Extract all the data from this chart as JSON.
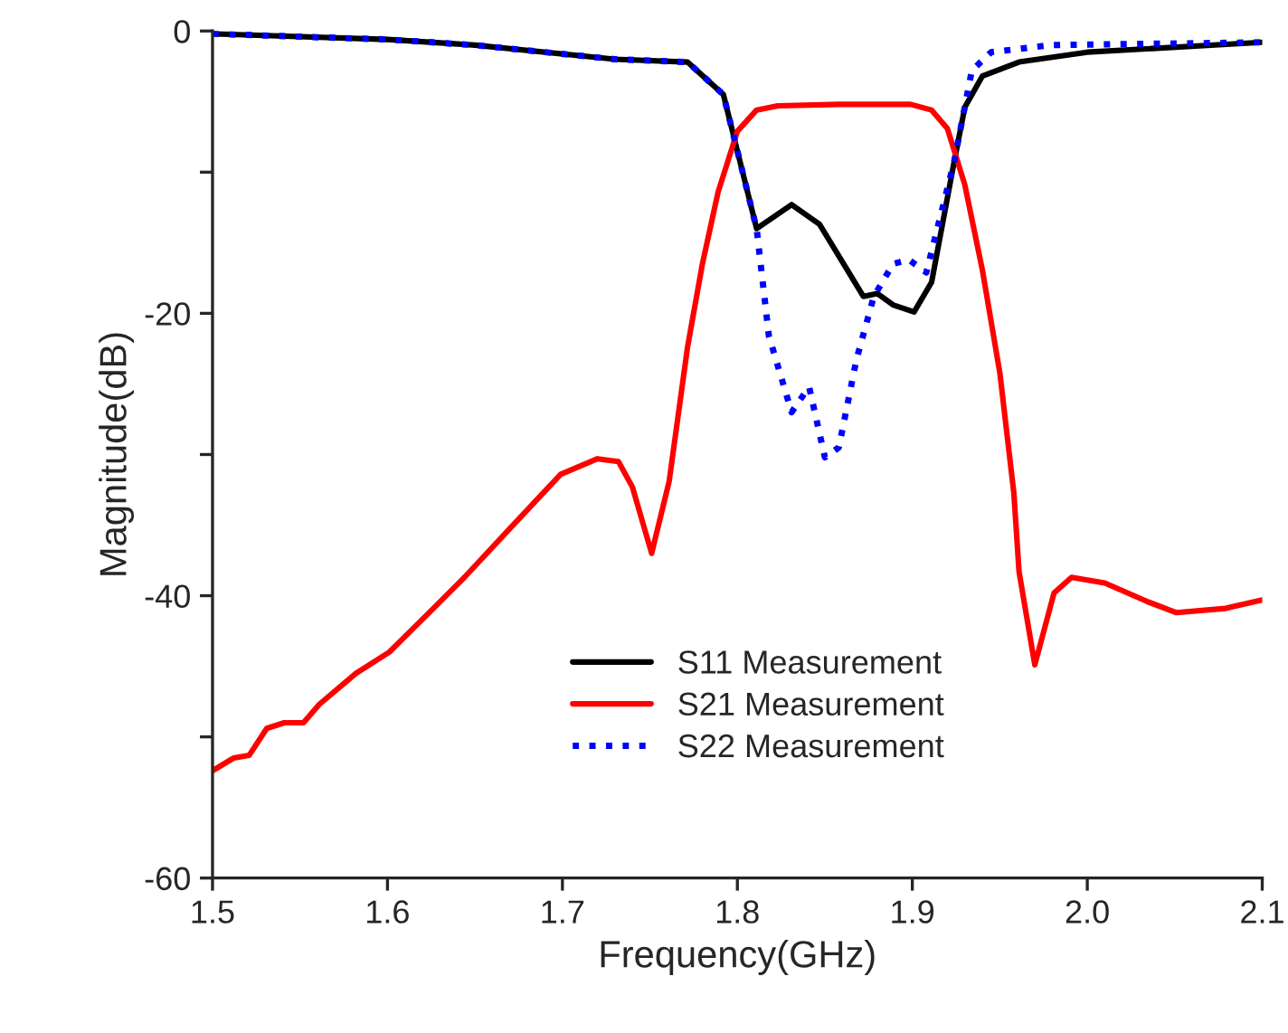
{
  "chart_data": {
    "type": "line",
    "xlabel": "Frequency(GHz)",
    "ylabel": "Magnitude(dB)",
    "xlim": [
      1.5,
      2.1
    ],
    "xticks": [
      1.5,
      1.6,
      1.7,
      1.8,
      1.9,
      {
        "value": 2.0,
        "label": "2.0"
      },
      2.1
    ],
    "ylim": [
      -60,
      0
    ],
    "yticks": [
      -60,
      {
        "value": -50,
        "label": null
      },
      -40,
      {
        "value": -30,
        "label": null
      },
      -20,
      {
        "value": -10,
        "label": null
      },
      0
    ],
    "grid": false,
    "legend": "bottom",
    "marker": "none",
    "series": [
      {
        "name": "S11 Measurement",
        "color": "#000000",
        "line_style": "solid",
        "x": [
          1.5,
          1.6,
          1.65,
          1.73,
          1.7715,
          1.792,
          1.811,
          1.831,
          1.847,
          1.872,
          1.88,
          1.889,
          1.901,
          1.911,
          1.924,
          1.93,
          1.94,
          1.961,
          2.0,
          2.1
        ],
        "values": [
          -0.2,
          -0.6,
          -1.0,
          -2.0,
          -2.2,
          -4.5,
          -14.0,
          -12.3,
          -13.7,
          -18.8,
          -18.6,
          -19.4,
          -19.9,
          -17.8,
          -9.2,
          -5.4,
          -3.2,
          -2.2,
          -1.5,
          -0.8
        ]
      },
      {
        "name": "S21 Measurement",
        "color": "#ff0000",
        "line_style": "solid",
        "x": [
          1.5,
          1.512,
          1.521,
          1.531,
          1.541,
          1.552,
          1.561,
          1.582,
          1.601,
          1.623,
          1.644,
          1.671,
          1.699,
          1.72,
          1.732,
          1.74,
          1.751,
          1.761,
          1.7715,
          1.78,
          1.789,
          1.8,
          1.811,
          1.823,
          1.858,
          1.899,
          1.911,
          1.92,
          1.93,
          1.94,
          1.95,
          1.958,
          1.961,
          1.97,
          1.981,
          1.991,
          2.01,
          2.034,
          2.051,
          2.079,
          2.1
        ],
        "values": [
          -52.4,
          -51.5,
          -51.3,
          -49.4,
          -49.0,
          -49.0,
          -47.7,
          -45.5,
          -44.0,
          -41.3,
          -38.7,
          -35.1,
          -31.4,
          -30.3,
          -30.5,
          -32.3,
          -37.0,
          -31.9,
          -22.4,
          -16.5,
          -11.4,
          -7.1,
          -5.6,
          -5.3,
          -5.2,
          -5.2,
          -5.6,
          -6.9,
          -10.9,
          -16.9,
          -24.2,
          -32.7,
          -38.3,
          -44.9,
          -39.8,
          -38.7,
          -39.1,
          -40.4,
          -41.2,
          -40.9,
          -40.3
        ]
      },
      {
        "name": "S22 Measurement",
        "color": "#0000ff",
        "line_style": "dotted",
        "x": [
          1.5,
          1.6,
          1.65,
          1.73,
          1.7715,
          1.792,
          1.811,
          1.818,
          1.831,
          1.841,
          1.85,
          1.858,
          1.868,
          1.878,
          1.889,
          1.898,
          1.908,
          1.924,
          1.934,
          1.945,
          1.979,
          2.1
        ],
        "values": [
          -0.2,
          -0.6,
          -1.0,
          -2.0,
          -2.2,
          -4.5,
          -14.0,
          -21.6,
          -27.0,
          -25.2,
          -30.2,
          -29.5,
          -23.3,
          -18.8,
          -16.5,
          -16.2,
          -17.1,
          -9.2,
          -2.8,
          -1.5,
          -1.0,
          -0.8
        ]
      }
    ]
  }
}
